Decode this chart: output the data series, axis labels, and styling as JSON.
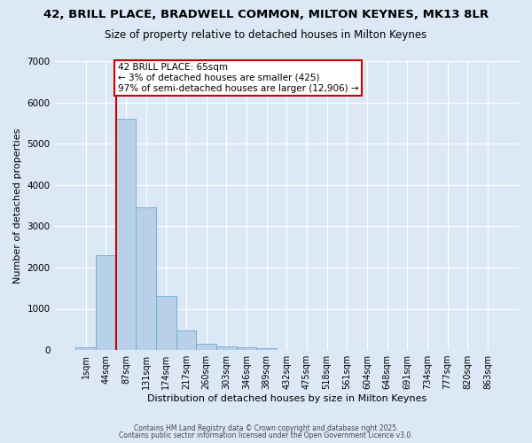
{
  "title_line1": "42, BRILL PLACE, BRADWELL COMMON, MILTON KEYNES, MK13 8LR",
  "title_line2": "Size of property relative to detached houses in Milton Keynes",
  "xlabel": "Distribution of detached houses by size in Milton Keynes",
  "ylabel": "Number of detached properties",
  "categories": [
    "1sqm",
    "44sqm",
    "87sqm",
    "131sqm",
    "174sqm",
    "217sqm",
    "260sqm",
    "303sqm",
    "346sqm",
    "389sqm",
    "432sqm",
    "475sqm",
    "518sqm",
    "561sqm",
    "604sqm",
    "648sqm",
    "691sqm",
    "734sqm",
    "777sqm",
    "820sqm",
    "863sqm"
  ],
  "values": [
    75,
    2300,
    5600,
    3450,
    1320,
    470,
    160,
    80,
    60,
    50,
    0,
    0,
    0,
    0,
    0,
    0,
    0,
    0,
    0,
    0,
    0
  ],
  "bar_color": "#b8d0e8",
  "bar_edgecolor": "#6aaad4",
  "background_color": "#dce8f5",
  "grid_color": "#ffffff",
  "vline_color": "#cc0000",
  "vline_x": 1.5,
  "annotation_text": "42 BRILL PLACE: 65sqm\n← 3% of detached houses are smaller (425)\n97% of semi-detached houses are larger (12,906) →",
  "annotation_box_facecolor": "#ffffff",
  "annotation_box_edgecolor": "#cc0000",
  "ylim": [
    0,
    7000
  ],
  "yticks": [
    0,
    1000,
    2000,
    3000,
    4000,
    5000,
    6000,
    7000
  ],
  "footer_line1": "Contains HM Land Registry data © Crown copyright and database right 2025.",
  "footer_line2": "Contains public sector information licensed under the Open Government Licence v3.0.",
  "title_fontsize": 9.5,
  "subtitle_fontsize": 8.5,
  "tick_fontsize": 7,
  "ylabel_fontsize": 8,
  "xlabel_fontsize": 8,
  "annotation_fontsize": 7.5,
  "footer_fontsize": 5.5
}
